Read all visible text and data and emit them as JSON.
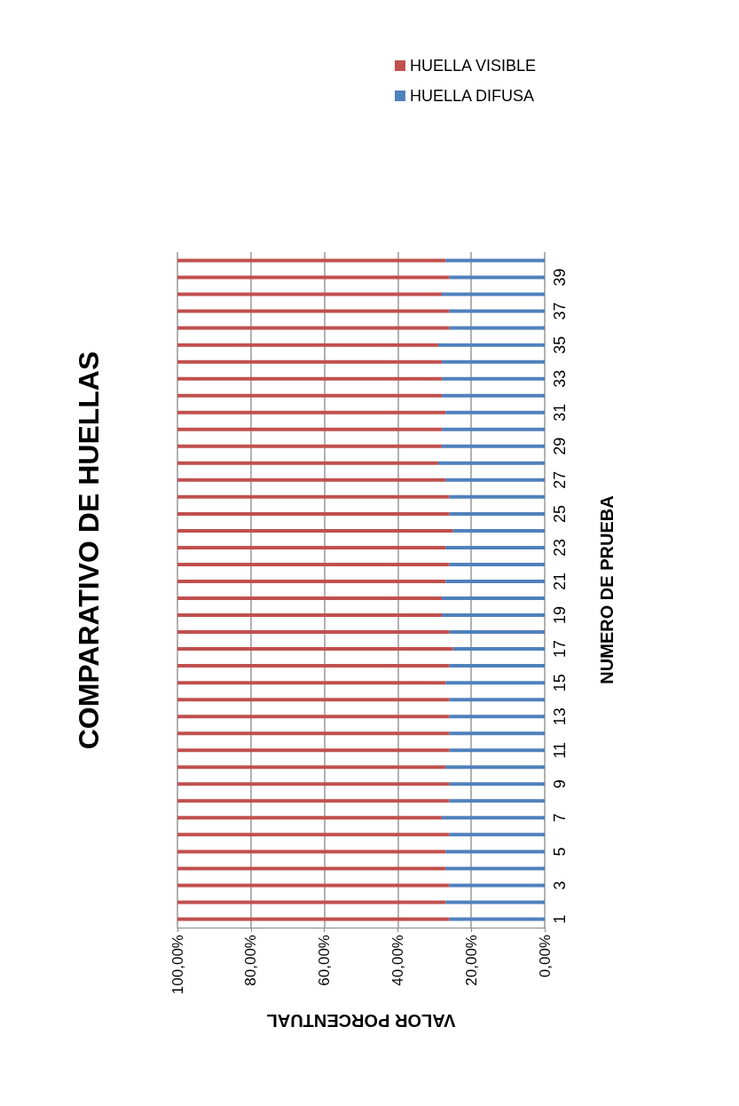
{
  "chart_data": {
    "type": "bar",
    "title": "COMPARATIVO DE HUELLAS",
    "xlabel": "VALOR PORCENTUAL",
    "ylabel": "NUMERO DE PRUEBA",
    "categories": [
      null,
      "39",
      null,
      "37",
      null,
      "35",
      null,
      "33",
      null,
      "31",
      null,
      "29",
      null,
      "27",
      null,
      "25",
      null,
      "23",
      null,
      "21",
      null,
      "19",
      null,
      "17",
      null,
      "15",
      null,
      "13",
      null,
      "11",
      null,
      "9",
      null,
      "7",
      null,
      "5",
      null,
      "3",
      null,
      "1"
    ],
    "stacked": true,
    "orientation": "horizontal",
    "series": [
      {
        "name": "HUELLA DIFUSA",
        "color": "#4f81bd",
        "values": [
          27,
          26,
          28,
          26,
          26,
          29,
          28,
          28,
          28,
          27,
          28,
          28,
          29,
          27,
          26,
          26,
          25,
          27,
          26,
          27,
          28,
          28,
          26,
          25,
          26,
          27,
          26,
          26,
          26,
          26,
          27,
          26,
          26,
          28,
          26,
          27,
          27,
          26,
          27,
          26
        ]
      },
      {
        "name": "HUELLA VISIBLE",
        "color": "#c0504d",
        "values": [
          73,
          74,
          72,
          74,
          74,
          71,
          72,
          72,
          72,
          73,
          72,
          72,
          71,
          73,
          74,
          74,
          75,
          73,
          74,
          73,
          72,
          72,
          74,
          75,
          74,
          73,
          74,
          74,
          74,
          74,
          73,
          74,
          74,
          72,
          74,
          73,
          73,
          74,
          73,
          74
        ]
      }
    ],
    "xlim": [
      100,
      0
    ],
    "xticks": [
      {
        "value": 0,
        "label": "0,00%"
      },
      {
        "value": 20,
        "label": "20,00%"
      },
      {
        "value": 40,
        "label": "40,00%"
      },
      {
        "value": 60,
        "label": "60,00%"
      },
      {
        "value": 80,
        "label": "80,00%"
      },
      {
        "value": 100,
        "label": "100,00%"
      }
    ],
    "grid": "x",
    "legend": "top right"
  }
}
